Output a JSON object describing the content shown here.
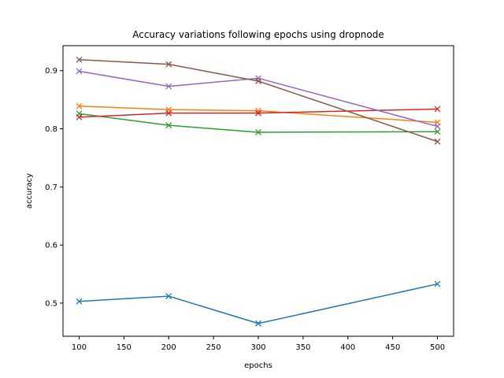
{
  "chart_data": {
    "type": "line",
    "title": "Accuracy variations following epochs using dropnode",
    "xlabel": "epochs",
    "ylabel": "accuracy",
    "x": [
      100,
      200,
      300,
      500
    ],
    "xlim": [
      82,
      518
    ],
    "ylim": [
      0.443,
      0.943
    ],
    "xticks": [
      100,
      150,
      200,
      250,
      300,
      350,
      400,
      450,
      500
    ],
    "yticks": [
      0.5,
      0.6,
      0.7,
      0.8,
      0.9
    ],
    "ytick_labels": [
      "0.5",
      "0.6",
      "0.7",
      "0.8",
      "0.9"
    ],
    "grid": false,
    "legend": null,
    "marker": "x",
    "series": [
      {
        "name": "series-1",
        "color": "#1f77b4",
        "values": [
          0.503,
          0.512,
          0.465,
          0.533
        ]
      },
      {
        "name": "series-2",
        "color": "#ff7f0e",
        "values": [
          0.839,
          0.833,
          0.831,
          0.811
        ]
      },
      {
        "name": "series-3",
        "color": "#2ca02c",
        "values": [
          0.826,
          0.806,
          0.794,
          0.795
        ]
      },
      {
        "name": "series-4",
        "color": "#d62728",
        "values": [
          0.82,
          0.827,
          0.827,
          0.834
        ]
      },
      {
        "name": "series-5",
        "color": "#9467bd",
        "values": [
          0.899,
          0.873,
          0.887,
          0.804
        ]
      },
      {
        "name": "series-6",
        "color": "#8c564b",
        "values": [
          0.919,
          0.911,
          0.882,
          0.778
        ]
      }
    ]
  }
}
